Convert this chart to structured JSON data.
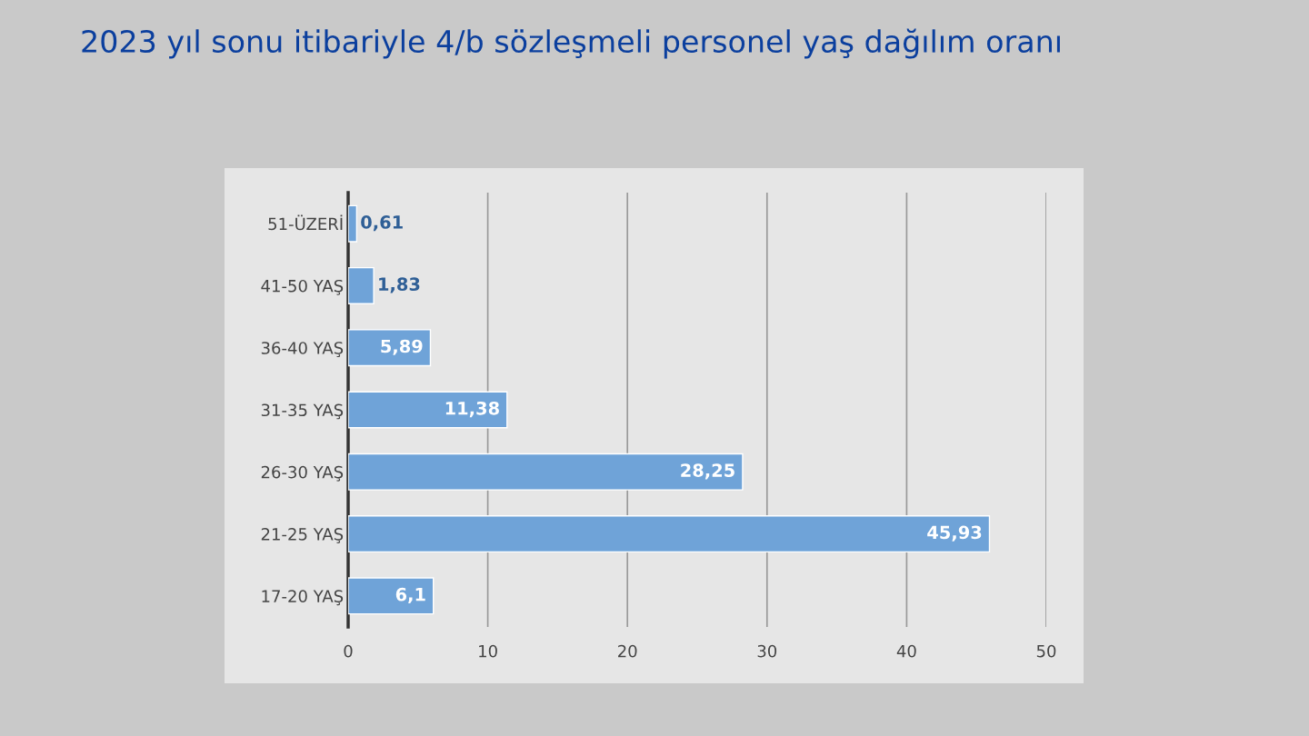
{
  "chart_data": {
    "type": "bar",
    "orientation": "horizontal",
    "title": "2023 yıl sonu itibariyle 4/b sözleşmeli personel yaş dağılım oranı",
    "categories": [
      "51-ÜZERİ",
      "41-50 YAŞ",
      "36-40 YAŞ",
      "31-35 YAŞ",
      "26-30 YAŞ",
      "21-25 YAŞ",
      "17-20 YAŞ"
    ],
    "values": [
      0.61,
      1.83,
      5.89,
      11.38,
      28.25,
      45.93,
      6.1
    ],
    "value_labels": [
      "0,61",
      "1,83",
      "5,89",
      "11,38",
      "28,25",
      "45,93",
      "6,1"
    ],
    "color": "#6fa3d8",
    "xlim": [
      0,
      50
    ],
    "xticks": [
      0,
      10,
      20,
      30,
      40,
      50
    ],
    "grid": "x",
    "legend": false
  }
}
